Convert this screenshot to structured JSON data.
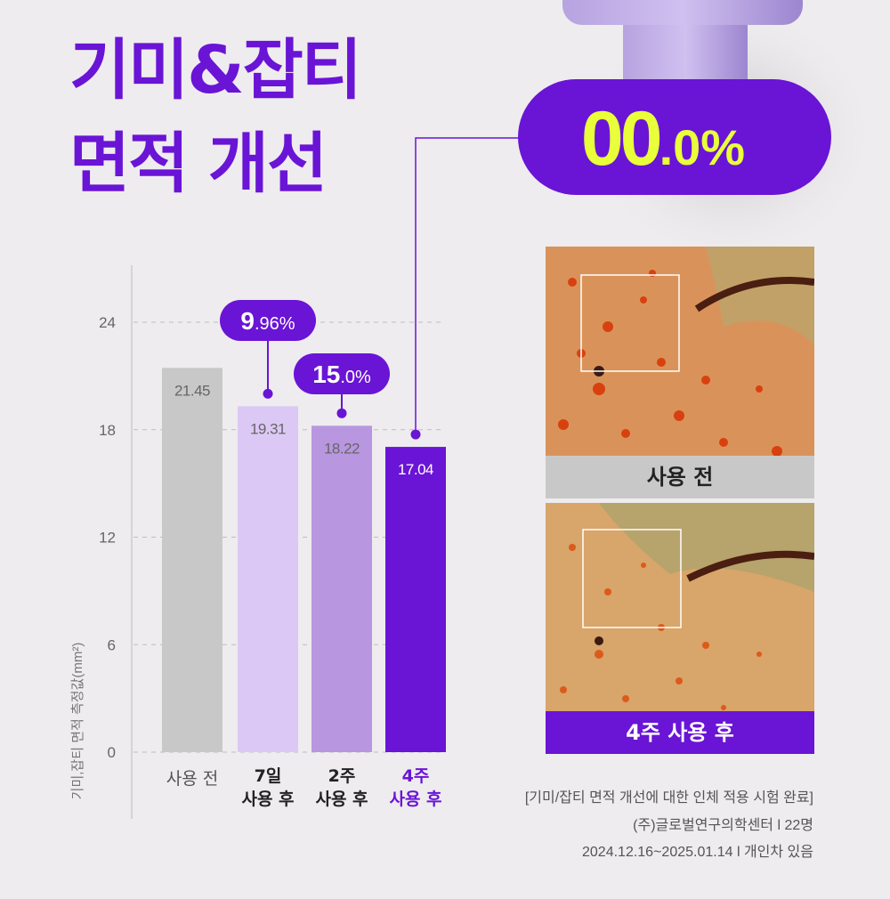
{
  "title": {
    "line1": "기미&잡티",
    "line2": "면적 개선"
  },
  "headline_badge": {
    "main": "00",
    "small": ".0%"
  },
  "colors": {
    "brand": "#6a14d6",
    "highlight": "#e8ff3a",
    "bar_before": "#c9c8c9",
    "bar_7d": "#dcc8f5",
    "bar_2w": "#b896e0",
    "bar_4w": "#6a14d6"
  },
  "chart_data": {
    "type": "bar",
    "ylabel": "기미,잡티 면적 측정값(mm²)",
    "ylim": [
      0,
      24
    ],
    "yticks": [
      0,
      6,
      12,
      18,
      24
    ],
    "grid": true,
    "categories": [
      {
        "line1": "사용 전",
        "line2": ""
      },
      {
        "line1": "7일",
        "line2": "사용 후"
      },
      {
        "line1": "2주",
        "line2": "사용 후"
      },
      {
        "line1": "4주",
        "line2": "사용 후"
      }
    ],
    "values": [
      21.45,
      19.31,
      18.22,
      17.04
    ],
    "value_labels": [
      "21.45",
      "19.31",
      "18.22",
      "17.04"
    ],
    "callouts": [
      {
        "bar": 1,
        "main": "9",
        "small": ".96%"
      },
      {
        "bar": 2,
        "main": "15",
        "small": ".0%"
      }
    ]
  },
  "photos": {
    "before_caption": "사용 전",
    "after_caption": "4주 사용 후"
  },
  "source": {
    "line1": "[기미/잡티 면적 개선에 대한 인체 적용 시험 완료]",
    "line2": "(주)글로벌연구의학센터 l  22명",
    "line3": "2024.12.16~2025.01.14  l  개인차 있음"
  }
}
